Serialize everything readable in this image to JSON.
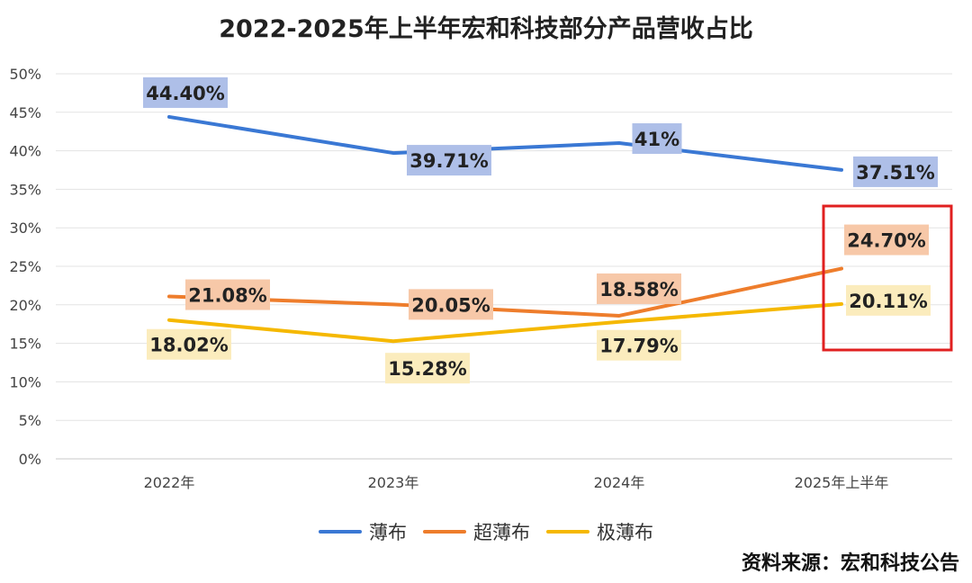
{
  "chart_data": {
    "type": "line",
    "title": "2022-2025年上半年宏和科技部分产品营收占比",
    "categories": [
      "2022年",
      "2023年",
      "2024年",
      "2025年上半年"
    ],
    "ylim": [
      0,
      50
    ],
    "yticks": [
      "0%",
      "5%",
      "10%",
      "15%",
      "20%",
      "25%",
      "30%",
      "35%",
      "40%",
      "45%",
      "50%"
    ],
    "grid": true,
    "legend_position": "bottom",
    "series": [
      {
        "name": "薄布",
        "color": "#3a78d4",
        "label_bg": "#aebfe8",
        "values": [
          44.4,
          39.71,
          41,
          37.51
        ],
        "labels": [
          "44.40%",
          "39.71%",
          "41%",
          "37.51%"
        ]
      },
      {
        "name": "超薄布",
        "color": "#ee7d2c",
        "label_bg": "#f7c8a8",
        "values": [
          21.08,
          20.05,
          18.58,
          24.7
        ],
        "labels": [
          "21.08%",
          "20.05%",
          "18.58%",
          "24.70%"
        ]
      },
      {
        "name": "极薄布",
        "color": "#f5b800",
        "label_bg": "#fbecbd",
        "values": [
          18.02,
          15.28,
          17.79,
          20.11
        ],
        "labels": [
          "18.02%",
          "15.28%",
          "17.79%",
          "20.11%"
        ]
      }
    ],
    "highlight_color": "#e02020"
  },
  "source": "资料来源：宏和科技公告"
}
